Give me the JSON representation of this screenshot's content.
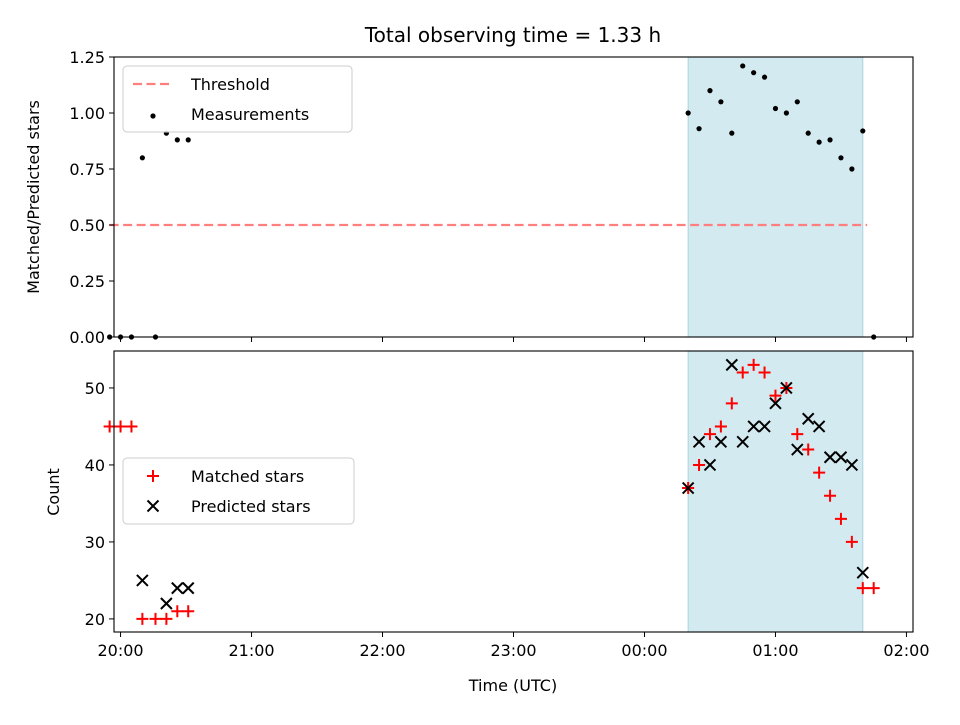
{
  "chart_data": [
    {
      "type": "scatter",
      "title": "Total observing time = 1.33 h",
      "xlabel": "",
      "ylabel": "Matched/Predicted stars",
      "xlim": [
        "19:57",
        "02:03"
      ],
      "ylim": [
        0,
        1.25
      ],
      "yticks": [
        "0.00",
        "0.25",
        "0.50",
        "0.75",
        "1.00",
        "1.25"
      ],
      "shaded_interval": [
        "00:20",
        "01:40"
      ],
      "shade_color": "#d3eaf0",
      "legend_position": "upper left",
      "series": [
        {
          "name": "Threshold",
          "kind": "dashed-line",
          "color": "#ff7f7f",
          "x": [
            "19:55",
            "01:42"
          ],
          "y": [
            0.5,
            0.5
          ]
        },
        {
          "name": "Measurements",
          "kind": "points",
          "color": "#000000",
          "x": [
            "19:55",
            "20:00",
            "20:05",
            "20:10",
            "20:16",
            "20:21",
            "20:26",
            "20:31",
            "00:20",
            "00:25",
            "00:30",
            "00:35",
            "00:40",
            "00:45",
            "00:50",
            "00:55",
            "01:00",
            "01:05",
            "01:10",
            "01:15",
            "01:20",
            "01:25",
            "01:30",
            "01:35",
            "01:40",
            "01:45"
          ],
          "y": [
            0.0,
            0.0,
            0.0,
            0.8,
            0.0,
            0.91,
            0.88,
            0.88,
            1.0,
            0.93,
            1.1,
            1.05,
            0.91,
            1.21,
            1.18,
            1.16,
            1.02,
            1.0,
            1.05,
            0.91,
            0.87,
            0.88,
            0.8,
            0.75,
            0.92,
            0.0
          ]
        }
      ]
    },
    {
      "type": "scatter",
      "title": "",
      "xlabel": "Time (UTC)",
      "ylabel": "Count",
      "xlim": [
        "19:57",
        "02:03"
      ],
      "ylim": [
        18.3,
        54.8
      ],
      "yticks": [
        "20",
        "30",
        "40",
        "50"
      ],
      "xticks": [
        "20:00",
        "21:00",
        "22:00",
        "23:00",
        "00:00",
        "01:00",
        "02:00"
      ],
      "shaded_interval": [
        "00:20",
        "01:40"
      ],
      "shade_color": "#d3eaf0",
      "legend_position": "center left",
      "series": [
        {
          "name": "Matched stars",
          "marker": "+",
          "color": "#ff0000",
          "x": [
            "19:55",
            "20:00",
            "20:05",
            "20:10",
            "20:16",
            "20:21",
            "20:26",
            "20:31",
            "00:20",
            "00:25",
            "00:30",
            "00:35",
            "00:40",
            "00:45",
            "00:50",
            "00:55",
            "01:00",
            "01:05",
            "01:10",
            "01:15",
            "01:20",
            "01:25",
            "01:30",
            "01:35",
            "01:40",
            "01:45"
          ],
          "y": [
            45,
            45,
            45,
            20,
            20,
            20,
            21,
            21,
            37,
            40,
            44,
            45,
            48,
            52,
            53,
            52,
            49,
            50,
            44,
            42,
            39,
            36,
            33,
            30,
            24,
            24
          ]
        },
        {
          "name": "Predicted stars",
          "marker": "x",
          "color": "#000000",
          "x": [
            "20:10",
            "20:21",
            "20:26",
            "20:31",
            "00:20",
            "00:25",
            "00:30",
            "00:35",
            "00:40",
            "00:45",
            "00:50",
            "00:55",
            "01:00",
            "01:05",
            "01:10",
            "01:15",
            "01:20",
            "01:25",
            "01:30",
            "01:35",
            "01:40"
          ],
          "y": [
            25,
            22,
            24,
            24,
            37,
            43,
            40,
            43,
            53,
            43,
            45,
            45,
            48,
            50,
            42,
            46,
            45,
            41,
            41,
            40,
            26
          ]
        }
      ]
    }
  ]
}
